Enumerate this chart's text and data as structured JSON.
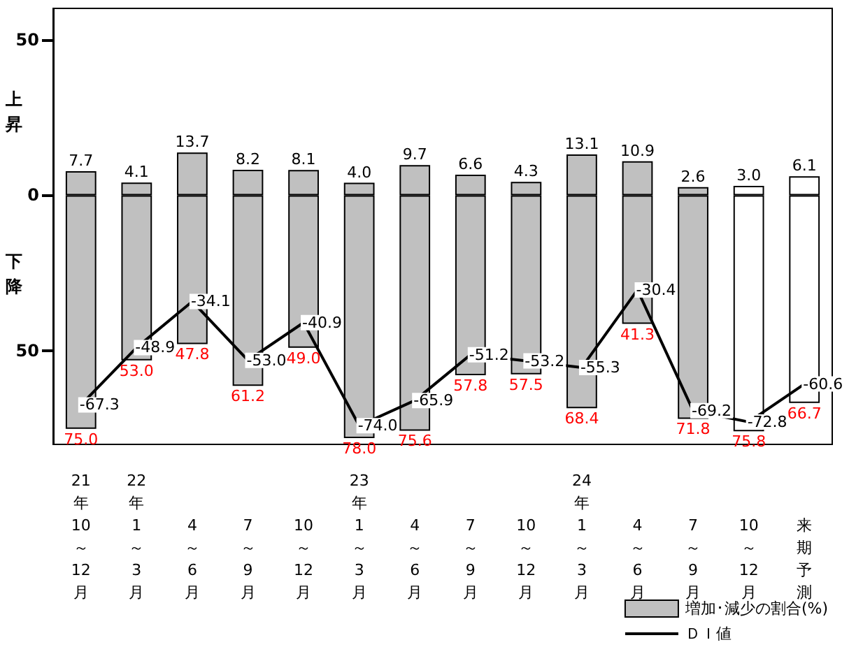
{
  "chart_data": {
    "type": "bar",
    "stacked": true,
    "categories": [
      "21年10～12月",
      "22年1～3月",
      "4～6月",
      "7～9月",
      "10～12月",
      "23年1～3月",
      "4～6月",
      "7～9月",
      "10～12月",
      "24年1～3月",
      "4～6月",
      "7～9月",
      "10～12月",
      "来期予測"
    ],
    "series": [
      {
        "name": "増加･減少の割合(%)",
        "colors": [
          "#c0c0c0",
          "#c0c0c0",
          "#c0c0c0",
          "#c0c0c0",
          "#c0c0c0",
          "#c0c0c0",
          "#c0c0c0",
          "#c0c0c0",
          "#c0c0c0",
          "#c0c0c0",
          "#c0c0c0",
          "#c0c0c0",
          "#ffffff",
          "#ffffff"
        ],
        "values": [
          7.7,
          4.1,
          13.7,
          8.2,
          8.1,
          4.0,
          9.7,
          6.6,
          4.3,
          13.1,
          10.9,
          2.6,
          3.0,
          6.1
        ],
        "value_labels": [
          "7.7",
          "4.1",
          "13.7",
          "8.2",
          "8.1",
          "4.0",
          "9.7",
          "6.6",
          "4.3",
          "13.1",
          "10.9",
          "2.6",
          "3.0",
          "6.1"
        ]
      },
      {
        "colors": [
          "#c0c0c0",
          "#c0c0c0",
          "#c0c0c0",
          "#c0c0c0",
          "#c0c0c0",
          "#c0c0c0",
          "#c0c0c0",
          "#c0c0c0",
          "#c0c0c0",
          "#c0c0c0",
          "#c0c0c0",
          "#c0c0c0",
          "#ffffff",
          "#ffffff"
        ],
        "values": [
          -75.0,
          -53.0,
          -47.8,
          -61.2,
          -49.0,
          -78.0,
          -75.6,
          -57.8,
          -57.5,
          -68.4,
          -41.3,
          -71.8,
          -75.8,
          -66.7
        ]
      },
      {
        "name": "ＤＩ値",
        "type": "line",
        "color": "#000000",
        "values": [
          -67.3,
          -48.9,
          -34.1,
          -53.0,
          -40.9,
          -74.0,
          -65.9,
          -51.2,
          -53.2,
          -55.3,
          -30.4,
          -69.2,
          -72.8,
          -60.6
        ],
        "value_labels": [
          "-67.3",
          "-48.9",
          "-34.1",
          "-53.0",
          "-40.9",
          "-74.0",
          "-65.9",
          "-51.2",
          "-53.2",
          "-55.3",
          "-30.4",
          "-69.2",
          "-72.8",
          "-60.6"
        ]
      }
    ],
    "ylim": [
      -80,
      60
    ],
    "yticks": [
      50,
      0,
      {
        "value": -50,
        "label": "50"
      }
    ],
    "annotations": [
      "上昇",
      "下降",
      "75.0",
      "53.0",
      "47.8",
      "61.2",
      "49.0",
      "78.0",
      "75.6",
      "57.8",
      "57.5",
      "68.4",
      "41.3",
      "71.8",
      "75.8",
      "66.7"
    ],
    "marker": "none",
    "line_style": "solid",
    "grid": false,
    "legend": "bottom right"
  }
}
